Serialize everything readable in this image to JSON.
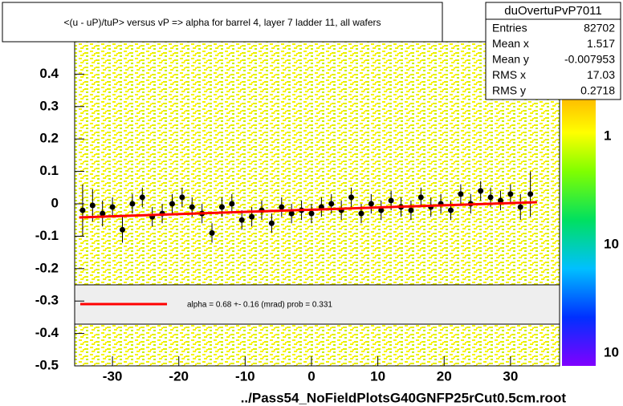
{
  "chart_data": {
    "type": "scatter",
    "title": "<(u - uP)/tuP> versus   vP => alpha for barrel 4, layer 7 ladder 11, all wafers",
    "x": [
      -34.5,
      -33,
      -31.5,
      -30,
      -28.5,
      -27,
      -25.5,
      -24,
      -22.5,
      -21,
      -19.5,
      -18,
      -16.5,
      -15,
      -13.5,
      -12,
      -10.5,
      -9,
      -7.5,
      -6,
      -4.5,
      -3,
      -1.5,
      0,
      1.5,
      3,
      4.5,
      6,
      7.5,
      9,
      10.5,
      12,
      13.5,
      15,
      16.5,
      18,
      19.5,
      21,
      22.5,
      24,
      25.5,
      27,
      28.5,
      30,
      31.5,
      33
    ],
    "values": [
      -0.02,
      -0.005,
      -0.03,
      -0.01,
      -0.08,
      0.0,
      0.02,
      -0.04,
      -0.03,
      0.0,
      0.02,
      -0.01,
      -0.03,
      -0.09,
      -0.01,
      0.0,
      -0.05,
      -0.04,
      -0.02,
      -0.06,
      -0.01,
      -0.03,
      -0.02,
      -0.03,
      -0.01,
      0.0,
      -0.02,
      0.02,
      -0.03,
      0.0,
      -0.02,
      0.01,
      -0.01,
      -0.02,
      0.02,
      -0.01,
      0.0,
      -0.02,
      0.03,
      0.0,
      0.04,
      0.02,
      0.01,
      0.03,
      -0.01,
      0.03
    ],
    "errors": [
      0.08,
      0.05,
      0.04,
      0.03,
      0.04,
      0.03,
      0.03,
      0.03,
      0.03,
      0.03,
      0.03,
      0.03,
      0.03,
      0.03,
      0.03,
      0.03,
      0.03,
      0.03,
      0.03,
      0.03,
      0.03,
      0.03,
      0.03,
      0.03,
      0.03,
      0.03,
      0.03,
      0.03,
      0.03,
      0.03,
      0.03,
      0.03,
      0.03,
      0.03,
      0.03,
      0.03,
      0.03,
      0.03,
      0.03,
      0.03,
      0.03,
      0.03,
      0.03,
      0.03,
      0.04,
      0.07
    ],
    "color": "#000000",
    "fit": {
      "x": [
        -35,
        34
      ],
      "y": [
        -0.042,
        0.005
      ],
      "color": "#ff0000"
    },
    "xlim": [
      -35.7,
      37.4
    ],
    "xticks": [
      -30,
      -20,
      -10,
      0,
      10,
      20,
      30
    ],
    "ylim": [
      -0.5,
      0.5
    ],
    "yticks": [
      -0.5,
      -0.4,
      -0.3,
      -0.2,
      -0.1,
      0,
      0.1,
      0.2,
      0.3,
      0.4
    ],
    "legend_text": "alpha =    0.68 +-  0.16 (mrad) prob = 0.331",
    "xlabel": "../Pass54_NoFieldPlotsG40GNFP25rCut0.5cm.root",
    "palette_labels": [
      "1",
      "10",
      "10"
    ],
    "stats": {
      "title": "duOvertuPvP7011",
      "rows": [
        [
          "Entries",
          "82702"
        ],
        [
          "Mean x",
          "1.517"
        ],
        [
          "Mean y",
          "-0.007953"
        ],
        [
          "RMS x",
          "17.03"
        ],
        [
          "RMS y",
          "0.2718"
        ]
      ]
    }
  }
}
